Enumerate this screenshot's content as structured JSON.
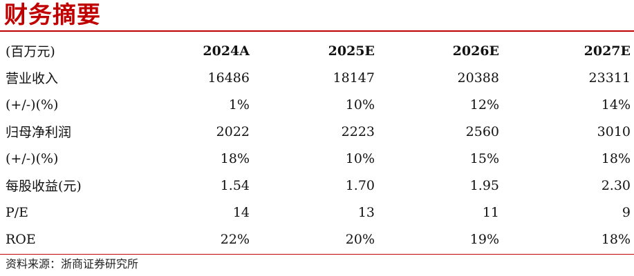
{
  "title": "财务摘要",
  "table": {
    "corner": "(百万元)",
    "columns": [
      "2024A",
      "2025E",
      "2026E",
      "2027E"
    ],
    "rows": [
      {
        "label": "营业收入",
        "values": [
          "16486",
          "18147",
          "20388",
          "23311"
        ]
      },
      {
        "label": "(+/-)(%)",
        "values": [
          "1%",
          "10%",
          "12%",
          "14%"
        ]
      },
      {
        "label": "归母净利润",
        "values": [
          "2022",
          "2223",
          "2560",
          "3010"
        ]
      },
      {
        "label": "(+/-)(%)",
        "values": [
          "18%",
          "10%",
          "15%",
          "18%"
        ]
      },
      {
        "label": "每股收益(元)",
        "values": [
          "1.54",
          "1.70",
          "1.95",
          "2.30"
        ]
      },
      {
        "label": "P/E",
        "values": [
          "14",
          "13",
          "11",
          "9"
        ]
      },
      {
        "label": "ROE",
        "values": [
          "22%",
          "20%",
          "19%",
          "18%"
        ]
      }
    ]
  },
  "source": "资料来源：浙商证券研究所",
  "colors": {
    "accent": "#c00000",
    "text": "#111111"
  }
}
